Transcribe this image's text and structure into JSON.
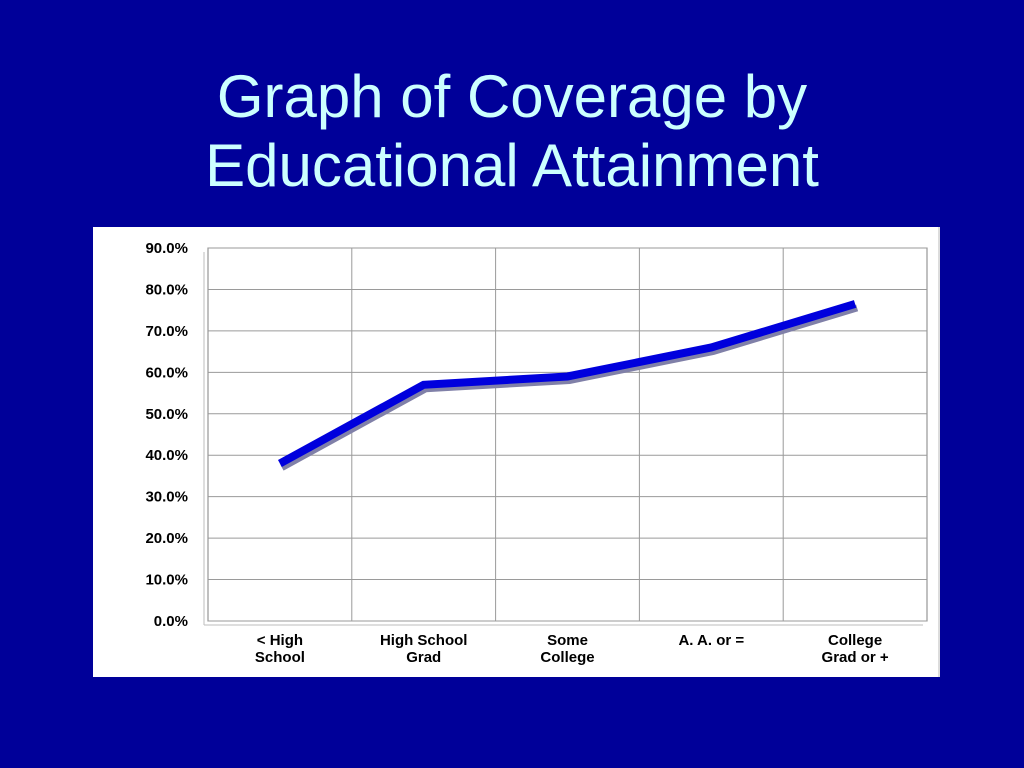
{
  "slide": {
    "title_line1": "Graph of Coverage by",
    "title_line2": "Educational Attainment",
    "background_color": "#000099",
    "title_color": "#ccffff"
  },
  "chart_data": {
    "type": "line",
    "title": "",
    "xlabel": "",
    "ylabel": "",
    "categories": [
      [
        "< High",
        "School"
      ],
      [
        "High School",
        "Grad"
      ],
      [
        "Some",
        "College"
      ],
      [
        "A. A. or ="
      ],
      [
        "College",
        "Grad or +"
      ]
    ],
    "values": [
      38.0,
      57.0,
      59.0,
      66.0,
      76.5
    ],
    "ylim": [
      0,
      90
    ],
    "y_ticks": [
      0,
      10,
      20,
      30,
      40,
      50,
      60,
      70,
      80,
      90
    ],
    "y_tick_labels": [
      "0.0%",
      "10.0%",
      "20.0%",
      "30.0%",
      "40.0%",
      "50.0%",
      "60.0%",
      "70.0%",
      "80.0%",
      "90.0%"
    ],
    "grid": true,
    "legend": "none",
    "line_color": "#0000dd",
    "shadow_color": "#8080a8"
  }
}
